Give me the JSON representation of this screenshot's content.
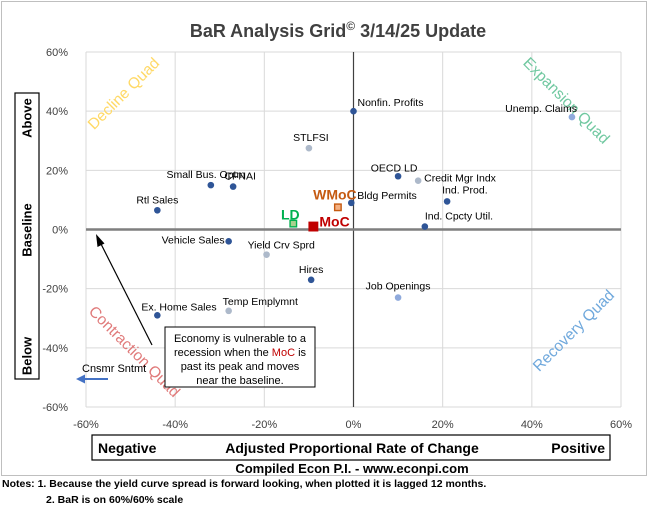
{
  "chart_data": {
    "type": "scatter",
    "title": "BaR Analysis Grid",
    "title_mark": "©",
    "title_suffix": " 3/14/25 Update",
    "xlabel": "Adjusted Proportional Rate of Change",
    "xlabel_left": "Negative",
    "xlabel_right": "Positive",
    "ylabel": "Baseline",
    "ylabel_top": "Above",
    "ylabel_bottom": "Below",
    "xlim": [
      -60,
      60
    ],
    "ylim": [
      -60,
      60
    ],
    "xticks": [
      "-60%",
      "-40%",
      "-20%",
      "0%",
      "20%",
      "40%",
      "60%"
    ],
    "xtick_values": [
      -60,
      -40,
      -20,
      0,
      20,
      40,
      60
    ],
    "yticks": [
      "60%",
      "40%",
      "20%",
      "0%",
      "-20%",
      "-40%",
      "-60%"
    ],
    "ytick_values": [
      60,
      40,
      20,
      0,
      -20,
      -40,
      -60
    ],
    "grid": true,
    "quadrants": [
      {
        "label": "Decline Quad",
        "color": "#ffd966"
      },
      {
        "label": "Expansion Quad",
        "color": "#70c8a0"
      },
      {
        "label": "Contraction Quad",
        "color": "#e07a7a"
      },
      {
        "label": "Recovery Quad",
        "color": "#6fa8dc"
      }
    ],
    "points": [
      {
        "label": "Nonfin. Profits",
        "x": 0,
        "y": 40,
        "color": "#2f5597"
      },
      {
        "label": "Unemp. Claims",
        "x": 49,
        "y": 38,
        "color": "#8faadc"
      },
      {
        "label": "STLFSI",
        "x": -10,
        "y": 27.5,
        "color": "#adb9ca"
      },
      {
        "label": "OECD LD",
        "x": 10,
        "y": 18,
        "color": "#2f5597"
      },
      {
        "label": "Credit Mgr Indx",
        "x": 14.5,
        "y": 16.5,
        "color": "#adb9ca"
      },
      {
        "label": "Small Bus. Optm",
        "x": -32,
        "y": 15,
        "color": "#2f5597"
      },
      {
        "label": "CFNAI",
        "x": -27,
        "y": 14.5,
        "color": "#2f5597"
      },
      {
        "label": "Ind. Prod.",
        "x": 21,
        "y": 9.5,
        "color": "#2f5597"
      },
      {
        "label": "Bldg Permits",
        "x": -0.5,
        "y": 9,
        "color": "#2f5597"
      },
      {
        "label": "Rtl Sales",
        "x": -44,
        "y": 6.5,
        "color": "#2f5597"
      },
      {
        "label": "Ind. Cpcty Util.",
        "x": 16,
        "y": 1,
        "color": "#2f5597"
      },
      {
        "label": "Vehicle Sales",
        "x": -28,
        "y": -4,
        "color": "#2f5597"
      },
      {
        "label": "Yield Crv Sprd",
        "x": -19.5,
        "y": -8.5,
        "color": "#adb9ca"
      },
      {
        "label": "Hires",
        "x": -9.5,
        "y": -17,
        "color": "#2f5597"
      },
      {
        "label": "Job Openings",
        "x": 10,
        "y": -23,
        "color": "#8faadc"
      },
      {
        "label": "Ex. Home Sales",
        "x": -44,
        "y": -29,
        "color": "#2f5597"
      },
      {
        "label": "Temp Emplymnt",
        "x": -28,
        "y": -27.5,
        "color": "#adb9ca"
      }
    ],
    "highlights": [
      {
        "label": "WMoC",
        "x": -3.5,
        "y": 7.5,
        "fill": "#f4b183",
        "stroke": "#c55a11"
      },
      {
        "label": "LD",
        "x": -13.5,
        "y": 2,
        "fill": "#a9d18e",
        "stroke": "#00b050"
      },
      {
        "label": "MoC",
        "x": -9,
        "y": 1,
        "fill": "#c00000",
        "stroke": "#c00000"
      }
    ],
    "offscale_label": "Cnsmr Sntmt",
    "annotation": {
      "lines": [
        "Economy is vulnerable to a",
        "recession when the ",
        "MoC",
        " is",
        "past its peak and moves",
        "near the baseline."
      ]
    }
  },
  "footer": {
    "credit": "Compiled Econ P.I. - www.econpi.com"
  },
  "notes": {
    "line1": "Notes: 1. Because the yield curve spread is forward looking, when plotted it is lagged 12 months.",
    "line2": "2. BaR is on 60%/60% scale"
  }
}
